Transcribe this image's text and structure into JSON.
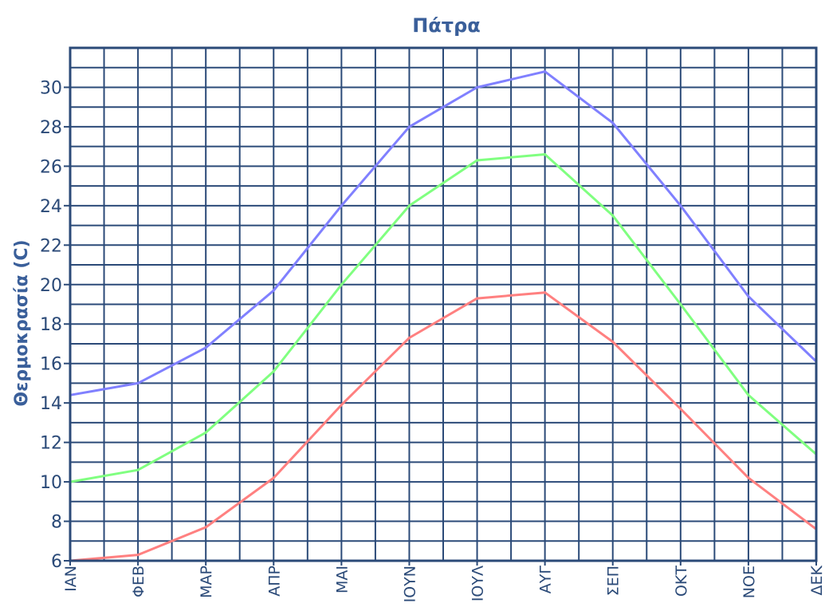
{
  "chart_data": {
    "type": "line",
    "title": "Πάτρα",
    "xlabel": "",
    "ylabel": "Θερμοκρασία (C)",
    "categories": [
      "ΙΑΝ",
      "ΦΕΒ",
      "ΜΑΡ",
      "ΑΠΡ",
      "ΜΑΙ",
      "ΙΟΥΝ",
      "ΙΟΥΛ",
      "ΑΥΓ",
      "ΣΕΠ",
      "ΟΚΤ",
      "ΝΟΕ",
      "ΔΕΚ"
    ],
    "ylim": [
      6,
      32
    ],
    "yticks": [
      6,
      8,
      10,
      12,
      14,
      16,
      18,
      20,
      22,
      24,
      26,
      28,
      30
    ],
    "grid": true,
    "series": [
      {
        "color": "#8080ff",
        "values": [
          14.4,
          15.0,
          16.8,
          19.7,
          24.0,
          28.0,
          30.0,
          30.8,
          28.2,
          24.0,
          19.4,
          16.1
        ]
      },
      {
        "color": "#80ff80",
        "values": [
          10.0,
          10.6,
          12.5,
          15.6,
          20.0,
          24.0,
          26.3,
          26.6,
          23.5,
          19.0,
          14.4,
          11.4
        ]
      },
      {
        "color": "#ff8080",
        "values": [
          6.0,
          6.3,
          7.7,
          10.2,
          13.9,
          17.3,
          19.3,
          19.6,
          17.1,
          13.7,
          10.2,
          7.6
        ]
      }
    ],
    "colors": {
      "axis": "#2b4a78",
      "grid": "#2b4a78",
      "text": "#2b4a78",
      "title": "#3a5f9a"
    }
  }
}
